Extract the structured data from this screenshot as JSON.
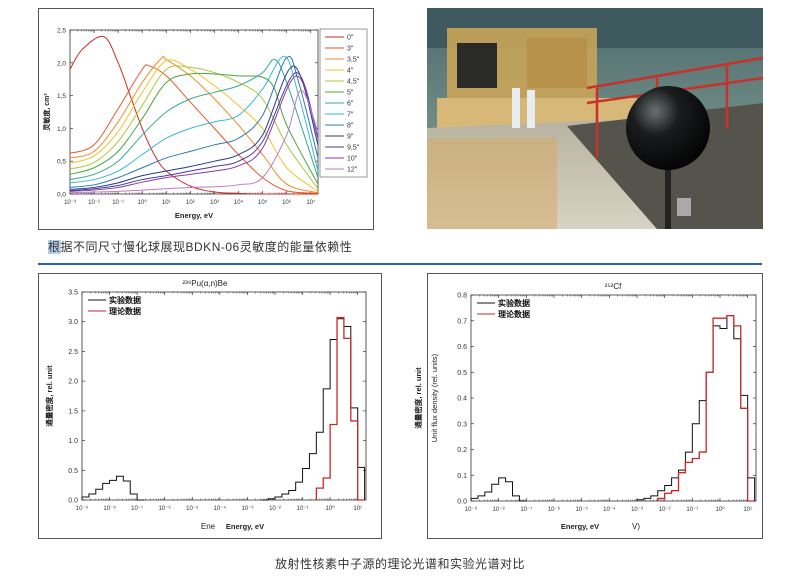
{
  "top_caption": {
    "highlight": "根",
    "rest": "据不同尺寸慢化球展现BDKN-06灵敏度的能量依赖性"
  },
  "bottom_caption": "放射性核素中子源的理论光谱和实验光谱对比",
  "photo": {
    "subject": "black spherical neutron detector in reactor hall"
  },
  "chart_data": [
    {
      "type": "line",
      "xlabel": "Energy, eV",
      "ylabel": "灵敏度, cm²",
      "xscale": "log",
      "xlim": [
        0.001,
        20000000
      ],
      "ylim": [
        0,
        2.5
      ],
      "xticks": [
        "10⁻³",
        "10⁻²",
        "10⁻¹",
        "10⁰",
        "10¹",
        "10²",
        "10³",
        "10⁴",
        "10⁵",
        "10⁶",
        "10⁷"
      ],
      "yticks": [
        "0,0",
        "0,5",
        "1,0",
        "1,5",
        "2,0",
        "2,5"
      ],
      "legend": "right",
      "series": [
        {
          "name": "0\"",
          "color": "#d42a20",
          "points": [
            [
              -3,
              1.9
            ],
            [
              -2.5,
              2.2
            ],
            [
              -1.6,
              2.4
            ],
            [
              -1,
              2.0
            ],
            [
              -0.5,
              1.5
            ],
            [
              0,
              1.0
            ],
            [
              0.5,
              0.6
            ],
            [
              1,
              0.35
            ],
            [
              2,
              0.12
            ],
            [
              3,
              0.03
            ],
            [
              4,
              0.01
            ],
            [
              5,
              0
            ],
            [
              7.3,
              0
            ]
          ]
        },
        {
          "name": "3\"",
          "color": "#e8582a",
          "points": [
            [
              -3,
              0.62
            ],
            [
              -2,
              0.75
            ],
            [
              -1,
              1.3
            ],
            [
              0,
              1.9
            ],
            [
              0.3,
              1.95
            ],
            [
              1,
              1.8
            ],
            [
              2,
              1.4
            ],
            [
              3,
              1.0
            ],
            [
              4,
              0.6
            ],
            [
              5,
              0.25
            ],
            [
              6,
              0.05
            ],
            [
              7.3,
              0.01
            ]
          ]
        },
        {
          "name": "3,5\"",
          "color": "#f08c2a",
          "points": [
            [
              -3,
              0.55
            ],
            [
              -2,
              0.65
            ],
            [
              -1,
              1.1
            ],
            [
              0,
              1.7
            ],
            [
              0.8,
              2.07
            ],
            [
              1,
              2.05
            ],
            [
              2,
              1.8
            ],
            [
              3,
              1.45
            ],
            [
              4,
              1.05
            ],
            [
              5,
              0.6
            ],
            [
              6,
              0.15
            ],
            [
              7.3,
              0.02
            ]
          ]
        },
        {
          "name": "4\"",
          "color": "#f2c22e",
          "points": [
            [
              -3,
              0.47
            ],
            [
              -2,
              0.58
            ],
            [
              -1,
              0.95
            ],
            [
              0,
              1.55
            ],
            [
              1,
              2.03
            ],
            [
              2,
              1.9
            ],
            [
              3,
              1.65
            ],
            [
              4,
              1.35
            ],
            [
              5,
              1.0
            ],
            [
              6,
              0.4
            ],
            [
              7.3,
              0.04
            ]
          ]
        },
        {
          "name": "4,5\"",
          "color": "#a8c83a",
          "points": [
            [
              -3,
              0.38
            ],
            [
              -2,
              0.48
            ],
            [
              -1,
              0.8
            ],
            [
              0,
              1.35
            ],
            [
              1,
              1.9
            ],
            [
              2,
              1.93
            ],
            [
              3,
              1.85
            ],
            [
              4,
              1.7
            ],
            [
              5,
              1.45
            ],
            [
              6,
              0.75
            ],
            [
              7.3,
              0.08
            ]
          ]
        },
        {
          "name": "5\"",
          "color": "#4aa83e",
          "points": [
            [
              -3,
              0.3
            ],
            [
              -2,
              0.4
            ],
            [
              -1,
              0.65
            ],
            [
              0,
              1.15
            ],
            [
              1,
              1.7
            ],
            [
              2,
              1.83
            ],
            [
              3,
              1.83
            ],
            [
              4,
              1.8
            ],
            [
              5,
              1.78
            ],
            [
              5.5,
              1.6
            ],
            [
              6,
              1.05
            ],
            [
              7.3,
              0.15
            ]
          ]
        },
        {
          "name": "6\"",
          "color": "#3aa890",
          "points": [
            [
              -3,
              0.22
            ],
            [
              -2,
              0.3
            ],
            [
              -1,
              0.5
            ],
            [
              0,
              0.9
            ],
            [
              1,
              1.25
            ],
            [
              2,
              1.45
            ],
            [
              3,
              1.55
            ],
            [
              4,
              1.65
            ],
            [
              5,
              1.85
            ],
            [
              5.5,
              2.05
            ],
            [
              6,
              1.7
            ],
            [
              7.3,
              0.25
            ]
          ]
        },
        {
          "name": "7\"",
          "color": "#3ab8d0",
          "points": [
            [
              -3,
              0.17
            ],
            [
              -2,
              0.22
            ],
            [
              -1,
              0.35
            ],
            [
              0,
              0.6
            ],
            [
              1,
              0.85
            ],
            [
              2,
              1.0
            ],
            [
              3,
              1.1
            ],
            [
              4,
              1.2
            ],
            [
              5,
              1.6
            ],
            [
              5.9,
              2.1
            ],
            [
              6.5,
              1.5
            ],
            [
              7.3,
              0.35
            ]
          ]
        },
        {
          "name": "8\"",
          "color": "#2a78c0",
          "points": [
            [
              -3,
              0.1
            ],
            [
              -2,
              0.14
            ],
            [
              -1,
              0.25
            ],
            [
              0,
              0.4
            ],
            [
              1,
              0.55
            ],
            [
              2,
              0.65
            ],
            [
              3,
              0.75
            ],
            [
              4,
              0.85
            ],
            [
              5,
              1.2
            ],
            [
              6,
              2.08
            ],
            [
              6.5,
              1.7
            ],
            [
              7.3,
              0.55
            ]
          ]
        },
        {
          "name": "9\"",
          "color": "#1e3c96",
          "points": [
            [
              -3,
              0.07
            ],
            [
              -2,
              0.1
            ],
            [
              -1,
              0.17
            ],
            [
              0,
              0.28
            ],
            [
              1,
              0.35
            ],
            [
              2,
              0.42
            ],
            [
              3,
              0.5
            ],
            [
              4,
              0.6
            ],
            [
              5,
              0.9
            ],
            [
              6.3,
              1.95
            ],
            [
              7.3,
              0.75
            ]
          ]
        },
        {
          "name": "9,5\"",
          "color": "#4a3a9a",
          "points": [
            [
              -3,
              0.05
            ],
            [
              -2,
              0.08
            ],
            [
              -1,
              0.13
            ],
            [
              0,
              0.22
            ],
            [
              1,
              0.28
            ],
            [
              2,
              0.35
            ],
            [
              3,
              0.42
            ],
            [
              4,
              0.5
            ],
            [
              5,
              0.8
            ],
            [
              6.4,
              1.85
            ],
            [
              7.3,
              0.85
            ]
          ]
        },
        {
          "name": "10\"",
          "color": "#8a3aa0",
          "points": [
            [
              -3,
              0.04
            ],
            [
              -2,
              0.06
            ],
            [
              -1,
              0.1
            ],
            [
              0,
              0.18
            ],
            [
              1,
              0.25
            ],
            [
              2,
              0.3
            ],
            [
              3,
              0.35
            ],
            [
              4,
              0.43
            ],
            [
              5,
              0.7
            ],
            [
              6.4,
              1.8
            ],
            [
              7.3,
              0.85
            ]
          ]
        },
        {
          "name": "12\"",
          "color": "#c07ac8",
          "points": [
            [
              -3,
              0.02
            ],
            [
              -2,
              0.03
            ],
            [
              -1,
              0.04
            ],
            [
              0,
              0.06
            ],
            [
              1,
              0.08
            ],
            [
              2,
              0.1
            ],
            [
              3,
              0.11
            ],
            [
              4,
              0.14
            ],
            [
              5,
              0.25
            ],
            [
              6,
              0.9
            ],
            [
              6.6,
              1.58
            ],
            [
              7.3,
              0.95
            ]
          ]
        }
      ]
    },
    {
      "type": "histogram",
      "title": "²³⁹Pu(α,n)Be",
      "xlabel": "Energy, eV",
      "xlabel_artifact": "Ene",
      "ylabel": "通量密度, rel. unit",
      "xscale": "log",
      "xlim": [
        1e-09,
        20
      ],
      "ylim": [
        0,
        3.5
      ],
      "xticks": [
        "10⁻⁹",
        "10⁻⁸",
        "10⁻⁷",
        "10⁻⁶",
        "10⁻⁵",
        "10⁻⁴",
        "10⁻³",
        "10⁻²",
        "10⁻¹",
        "10⁰",
        "10¹"
      ],
      "yticks": [
        "0.0",
        "0.5",
        "1.0",
        "1.5",
        "2.0",
        "2.5",
        "3.0",
        "3.5"
      ],
      "legend": "top-left",
      "bin_width_decades": 0.25,
      "series": [
        {
          "name": "实验数据",
          "color": "#111111",
          "bins": [
            [
              -9,
              0.05
            ],
            [
              -8.75,
              0.1
            ],
            [
              -8.5,
              0.18
            ],
            [
              -8.25,
              0.28
            ],
            [
              -8,
              0.33
            ],
            [
              -7.75,
              0.4
            ],
            [
              -7.5,
              0.32
            ],
            [
              -7.25,
              0.1
            ],
            [
              -7,
              0
            ],
            [
              -2.5,
              0
            ],
            [
              -2.25,
              0.02
            ],
            [
              -2,
              0.05
            ],
            [
              -1.75,
              0.1
            ],
            [
              -1.5,
              0.16
            ],
            [
              -1.25,
              0.3
            ],
            [
              -1,
              0.53
            ],
            [
              -0.75,
              0.78
            ],
            [
              -0.5,
              1.14
            ],
            [
              -0.25,
              1.87
            ],
            [
              0,
              2.7
            ],
            [
              0.25,
              3.05
            ],
            [
              0.5,
              2.92
            ],
            [
              0.75,
              1.55
            ],
            [
              1,
              0.55
            ]
          ]
        },
        {
          "name": "理论数据",
          "color": "#c8282a",
          "bins": [
            [
              -0.5,
              0.2
            ],
            [
              -0.25,
              0.37
            ],
            [
              0,
              1.27
            ],
            [
              0.25,
              3.07
            ],
            [
              0.5,
              2.72
            ],
            [
              0.75,
              1.33
            ],
            [
              1,
              0
            ]
          ]
        }
      ]
    },
    {
      "type": "histogram",
      "title": "²⁵²Cf",
      "xlabel": "Energy, eV",
      "xlabel_artifact": "V)",
      "ylabel": "通量密度, rel. unit",
      "ylabel2": "Unit flux density (rel. units)",
      "xscale": "log",
      "xlim": [
        1e-09,
        20
      ],
      "ylim": [
        0,
        0.8
      ],
      "xticks": [
        "10⁻⁹",
        "10⁻⁸",
        "10⁻⁷",
        "10⁻⁶",
        "10⁻⁵",
        "10⁻⁴",
        "10⁻³",
        "10⁻²",
        "10⁻¹",
        "10⁰",
        "10¹"
      ],
      "yticks": [
        "0.0",
        "0.1",
        "0.2",
        "0.3",
        "0.4",
        "0.5",
        "0.6",
        "0.7",
        "0.8"
      ],
      "legend": "top-left",
      "bin_width_decades": 0.25,
      "series": [
        {
          "name": "实验数据",
          "color": "#111111",
          "bins": [
            [
              -9,
              0.01
            ],
            [
              -8.75,
              0.02
            ],
            [
              -8.5,
              0.035
            ],
            [
              -8.25,
              0.065
            ],
            [
              -8,
              0.09
            ],
            [
              -7.75,
              0.075
            ],
            [
              -7.5,
              0.02
            ],
            [
              -7.25,
              0
            ],
            [
              -3,
              0.005
            ],
            [
              -2.75,
              0.01
            ],
            [
              -2.5,
              0.02
            ],
            [
              -2.25,
              0.04
            ],
            [
              -2,
              0.06
            ],
            [
              -1.75,
              0.09
            ],
            [
              -1.5,
              0.12
            ],
            [
              -1.25,
              0.19
            ],
            [
              -1,
              0.3
            ],
            [
              -0.75,
              0.39
            ],
            [
              -0.5,
              0.5
            ],
            [
              -0.25,
              0.68
            ],
            [
              0,
              0.67
            ],
            [
              0.25,
              0.72
            ],
            [
              0.5,
              0.63
            ],
            [
              0.75,
              0.41
            ],
            [
              1,
              0.09
            ]
          ]
        },
        {
          "name": "理论数据",
          "color": "#c8282a",
          "bins": [
            [
              -2.25,
              0.01
            ],
            [
              -2,
              0.03
            ],
            [
              -1.75,
              0.04
            ],
            [
              -1.5,
              0.11
            ],
            [
              -1.25,
              0.15
            ],
            [
              -1,
              0.165
            ],
            [
              -0.75,
              0.19
            ],
            [
              -0.5,
              0.5
            ],
            [
              -0.25,
              0.71
            ],
            [
              0,
              0.71
            ],
            [
              0.25,
              0.72
            ],
            [
              0.5,
              0.68
            ],
            [
              0.75,
              0.36
            ],
            [
              1,
              0
            ]
          ]
        }
      ]
    }
  ]
}
